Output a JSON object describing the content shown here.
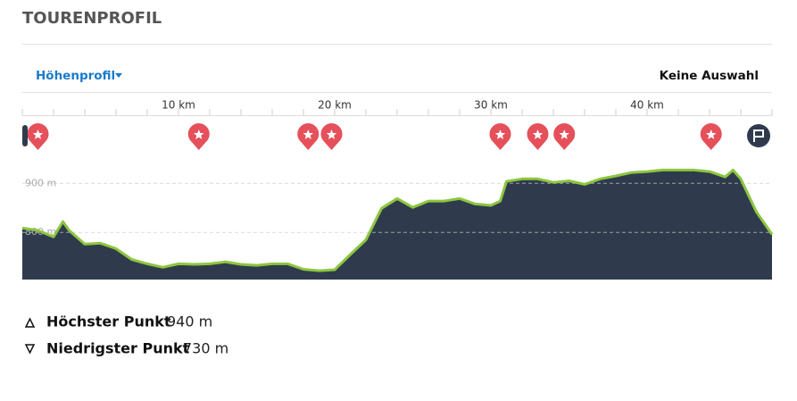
{
  "header": {
    "title": "TOURENPROFIL"
  },
  "toolbar": {
    "dropdown": "Höhenprofil",
    "selection": "Keine Auswahl"
  },
  "chart_data": {
    "type": "area",
    "x": [
      0,
      1,
      2,
      2.6,
      3,
      4,
      5,
      6,
      7,
      8,
      9,
      10,
      11,
      12,
      13,
      14,
      15,
      16,
      17,
      18,
      19,
      20,
      21,
      22,
      23,
      24,
      25,
      26,
      27,
      28,
      29,
      30,
      30.6,
      31,
      32,
      33,
      34,
      35,
      36,
      37,
      38,
      39,
      40,
      41,
      42,
      43,
      44,
      45,
      45.5,
      46,
      47,
      48
    ],
    "values": [
      809,
      804,
      791,
      822,
      804,
      776,
      778,
      767,
      745,
      736,
      729,
      736,
      735,
      736,
      740,
      735,
      733,
      736,
      736,
      725,
      722,
      724,
      755,
      785,
      849,
      869,
      851,
      864,
      864,
      869,
      858,
      855,
      864,
      904,
      909,
      909,
      902,
      905,
      898,
      909,
      915,
      922,
      924,
      927,
      927,
      927,
      924,
      913,
      927,
      909,
      842,
      796
    ],
    "color": "#2f3b4d",
    "line_color": "#8dc63f",
    "xlim": [
      0,
      48
    ],
    "ylim": [
      704,
      946
    ],
    "xticks": [
      {
        "value": 10,
        "label": "10 km"
      },
      {
        "value": 20,
        "label": "20 km"
      },
      {
        "value": 30,
        "label": "30 km"
      },
      {
        "value": 40,
        "label": "40 km"
      }
    ],
    "xminorticks": [
      0,
      2,
      4,
      6,
      8,
      10,
      12,
      14,
      16,
      18,
      20,
      22,
      24,
      26,
      28,
      30,
      32,
      34,
      36,
      38,
      40,
      42,
      44,
      46,
      48
    ],
    "yticks": [
      {
        "value": 800,
        "label": "800 m"
      },
      {
        "value": 900,
        "label": "900 m"
      }
    ],
    "grid": true,
    "pois": [
      1.0,
      11.3,
      18.3,
      19.8,
      30.6,
      33.0,
      34.7,
      44.1
    ],
    "poi_color": "#e5505a"
  },
  "stats": {
    "highest": {
      "label": "Höchster Punkt",
      "value": "940 m"
    },
    "lowest": {
      "label": "Niedrigster Punkt",
      "value": "730 m"
    }
  }
}
